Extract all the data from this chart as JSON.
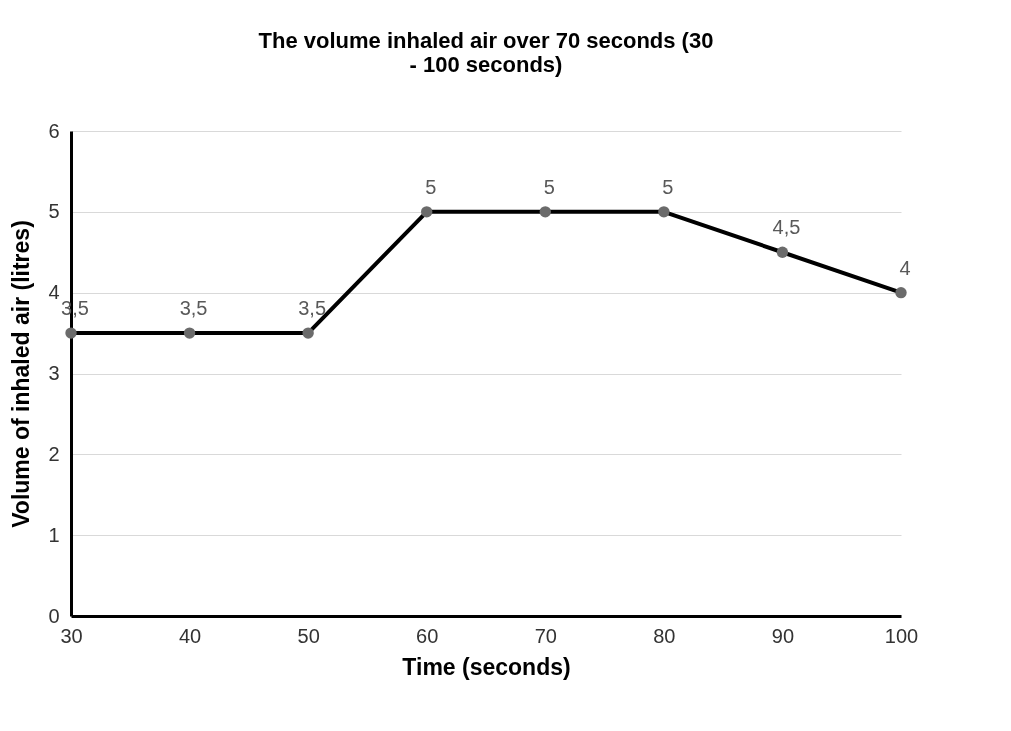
{
  "chart_data": {
    "type": "line",
    "title": "The volume inhaled air over 70 seconds (30 - 100 seconds)",
    "xlabel": "Time (seconds)",
    "ylabel": "Volume of inhaled air (litres)",
    "categories": [
      "30",
      "40",
      "50",
      "60",
      "70",
      "80",
      "90",
      "100"
    ],
    "series": [
      {
        "color": "#000000",
        "values": [
          3.5,
          3.5,
          3.5,
          5,
          5,
          5,
          4.5,
          4
        ],
        "value_labels": [
          "3,5",
          "3,5",
          "3,5",
          "5",
          "5",
          "5",
          "4,5",
          "4"
        ]
      }
    ],
    "ylim": [
      0,
      6
    ],
    "yticks": [
      0,
      1,
      2,
      3,
      4,
      5,
      6
    ],
    "grid": "y",
    "marker": "circle",
    "line_style": "solid"
  }
}
